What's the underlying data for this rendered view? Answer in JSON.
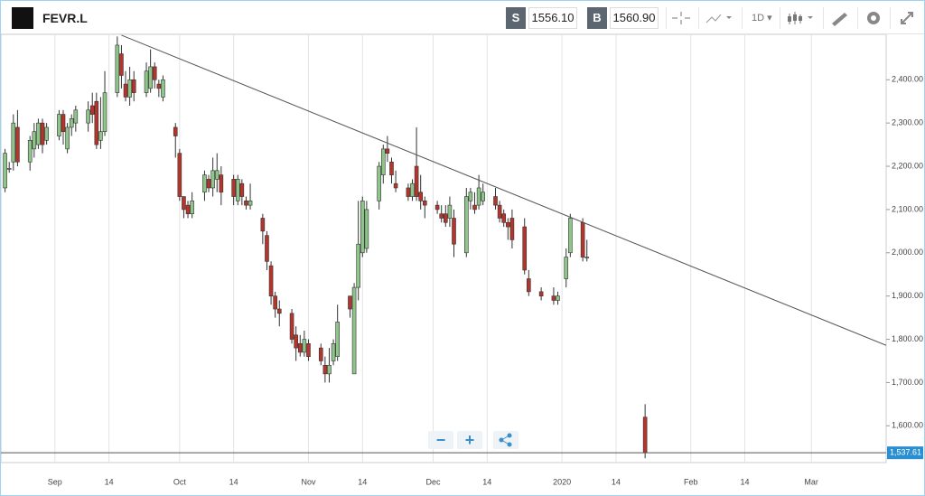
{
  "header": {
    "symbol": "FEVR.L",
    "sell_label": "S",
    "sell_price": "1556.10",
    "buy_label": "B",
    "buy_price": "1560.90",
    "interval": "1D"
  },
  "controls": {
    "zoom_out": "−",
    "zoom_in": "+"
  },
  "chart_data": {
    "type": "candlestick",
    "x": [
      "2019-08-20",
      "2019-08-21",
      "2019-08-22",
      "2019-08-23",
      "2019-08-26",
      "2019-08-27",
      "2019-08-28",
      "2019-08-29",
      "2019-08-30",
      "2019-09-02",
      "2019-09-03",
      "2019-09-04",
      "2019-09-05",
      "2019-09-06",
      "2019-09-09",
      "2019-09-10",
      "2019-09-11",
      "2019-09-12",
      "2019-09-13",
      "2019-09-16",
      "2019-09-17",
      "2019-09-18",
      "2019-09-19",
      "2019-09-20",
      "2019-09-23",
      "2019-09-24",
      "2019-09-25",
      "2019-09-26",
      "2019-09-27",
      "2019-09-30",
      "2019-10-01",
      "2019-10-02",
      "2019-10-03",
      "2019-10-04",
      "2019-10-07",
      "2019-10-08",
      "2019-10-09",
      "2019-10-10",
      "2019-10-11",
      "2019-10-14",
      "2019-10-15",
      "2019-10-16",
      "2019-10-17",
      "2019-10-18",
      "2019-10-21",
      "2019-10-22",
      "2019-10-23",
      "2019-10-24",
      "2019-10-25",
      "2019-10-28",
      "2019-10-29",
      "2019-10-30",
      "2019-10-31",
      "2019-11-01",
      "2019-11-04",
      "2019-11-05",
      "2019-11-06",
      "2019-11-07",
      "2019-11-08",
      "2019-11-11",
      "2019-11-12",
      "2019-11-13",
      "2019-11-14",
      "2019-11-15",
      "2019-11-18",
      "2019-11-19",
      "2019-11-20",
      "2019-11-21",
      "2019-11-22",
      "2019-11-25",
      "2019-11-26",
      "2019-11-27",
      "2019-11-28",
      "2019-11-29",
      "2019-12-02",
      "2019-12-03",
      "2019-12-04",
      "2019-12-05",
      "2019-12-06",
      "2019-12-09",
      "2019-12-10",
      "2019-12-11",
      "2019-12-12",
      "2019-12-13",
      "2019-12-16",
      "2019-12-17",
      "2019-12-18",
      "2019-12-19",
      "2019-12-20",
      "2019-12-23",
      "2019-12-24",
      "2019-12-27",
      "2019-12-30",
      "2019-12-31",
      "2020-01-02",
      "2020-01-03",
      "2020-01-06",
      "2020-01-07",
      "2020-01-21"
    ],
    "open": [
      2150,
      2195,
      2210,
      2290,
      2210,
      2240,
      2250,
      2300,
      2260,
      2270,
      2320,
      2240,
      2290,
      2300,
      2300,
      2340,
      2350,
      2260,
      2280,
      2370,
      2460,
      2390,
      2360,
      2400,
      2370,
      2380,
      2430,
      2390,
      2360,
      2290,
      2230,
      2130,
      2110,
      2090,
      2140,
      2170,
      2150,
      2170,
      2180,
      2170,
      2120,
      2160,
      2120,
      2110,
      2080,
      2040,
      1970,
      1900,
      1870,
      1860,
      1810,
      1790,
      1770,
      1790,
      1780,
      1740,
      1720,
      1750,
      1760,
      1900,
      1720,
      1920,
      2000,
      2010,
      2120,
      2180,
      2240,
      2210,
      2160,
      2150,
      2130,
      2200,
      2140,
      2120,
      2110,
      2090,
      2090,
      2080,
      2080,
      2000,
      2120,
      2110,
      2110,
      2120,
      2130,
      2110,
      2090,
      2070,
      2080,
      2060,
      1940,
      1910,
      1900,
      1890,
      1940,
      2000,
      2070,
      1990,
      1620
    ],
    "high": [
      2240,
      2210,
      2320,
      2330,
      2270,
      2300,
      2310,
      2310,
      2300,
      2330,
      2330,
      2300,
      2320,
      2340,
      2350,
      2370,
      2370,
      2360,
      2420,
      2500,
      2480,
      2420,
      2430,
      2420,
      2440,
      2470,
      2440,
      2400,
      2410,
      2300,
      2240,
      2130,
      2120,
      2140,
      2190,
      2180,
      2220,
      2230,
      2200,
      2180,
      2180,
      2170,
      2130,
      2160,
      2090,
      2050,
      1980,
      1910,
      1890,
      1870,
      1830,
      1810,
      1820,
      1800,
      1790,
      1760,
      1780,
      1800,
      1880,
      1900,
      1930,
      2120,
      2130,
      2120,
      2210,
      2250,
      2270,
      2220,
      2190,
      2160,
      2170,
      2290,
      2180,
      2130,
      2120,
      2110,
      2110,
      2130,
      2100,
      2150,
      2150,
      2140,
      2180,
      2160,
      2150,
      2120,
      2100,
      2080,
      2100,
      2080,
      1960,
      1920,
      1920,
      1910,
      2010,
      2090,
      2080,
      2030,
      1650
    ],
    "low": [
      2140,
      2185,
      2190,
      2200,
      2190,
      2220,
      2240,
      2230,
      2250,
      2260,
      2250,
      2230,
      2270,
      2280,
      2280,
      2300,
      2240,
      2240,
      2270,
      2360,
      2380,
      2350,
      2340,
      2350,
      2360,
      2370,
      2380,
      2360,
      2350,
      2220,
      2120,
      2080,
      2080,
      2080,
      2120,
      2140,
      2130,
      2140,
      2110,
      2110,
      2110,
      2110,
      2100,
      2100,
      2020,
      1960,
      1880,
      1850,
      1830,
      1790,
      1750,
      1760,
      1760,
      1750,
      1740,
      1700,
      1700,
      1740,
      1750,
      1850,
      1720,
      1890,
      1990,
      2000,
      2100,
      2160,
      2210,
      2160,
      2140,
      2120,
      2120,
      2120,
      2100,
      2080,
      2090,
      2070,
      2060,
      2060,
      1990,
      1990,
      2100,
      2090,
      2100,
      2110,
      2100,
      2070,
      2060,
      2030,
      2010,
      1950,
      1900,
      1890,
      1880,
      1880,
      1920,
      1990,
      1980,
      1980,
      1525
    ],
    "close": [
      2230,
      2195,
      2300,
      2210,
      2260,
      2280,
      2300,
      2250,
      2290,
      2320,
      2280,
      2290,
      2310,
      2330,
      2330,
      2320,
      2250,
      2280,
      2370,
      2480,
      2410,
      2360,
      2400,
      2370,
      2420,
      2430,
      2400,
      2380,
      2400,
      2270,
      2130,
      2100,
      2090,
      2120,
      2180,
      2150,
      2190,
      2190,
      2140,
      2130,
      2170,
      2130,
      2110,
      2120,
      2050,
      1980,
      1900,
      1870,
      1860,
      1800,
      1780,
      1770,
      1800,
      1760,
      1750,
      1720,
      1740,
      1790,
      1840,
      1870,
      1920,
      2020,
      2120,
      2100,
      2200,
      2240,
      2230,
      2180,
      2150,
      2130,
      2160,
      2130,
      2120,
      2110,
      2100,
      2080,
      2070,
      2110,
      2020,
      2130,
      2140,
      2100,
      2150,
      2140,
      2110,
      2080,
      2070,
      2060,
      2030,
      1960,
      1910,
      1900,
      1890,
      1900,
      1990,
      2080,
      1990,
      1990,
      1538
    ],
    "up_color": "#8fc48b",
    "down_color": "#b5342b",
    "xlim": [
      "2019-08-19",
      "2020-03-19"
    ],
    "xticks": [
      {
        "value": "2019-09-01",
        "label": "Sep"
      },
      {
        "value": "2019-09-14",
        "label": "14"
      },
      {
        "value": "2019-10-01",
        "label": "Oct"
      },
      {
        "value": "2019-10-14",
        "label": "14"
      },
      {
        "value": "2019-11-01",
        "label": "Nov"
      },
      {
        "value": "2019-11-14",
        "label": "14"
      },
      {
        "value": "2019-12-01",
        "label": "Dec"
      },
      {
        "value": "2019-12-14",
        "label": "14"
      },
      {
        "value": "2020-01-01",
        "label": "2020"
      },
      {
        "value": "2020-01-14",
        "label": "14"
      },
      {
        "value": "2020-02-01",
        "label": "Feb"
      },
      {
        "value": "2020-02-14",
        "label": "14"
      },
      {
        "value": "2020-03-01",
        "label": "Mar"
      }
    ],
    "ylim": [
      1515,
      2505
    ],
    "yticks": [
      {
        "value": 1600,
        "label": "1,600.00"
      },
      {
        "value": 1700,
        "label": "1,700.00"
      },
      {
        "value": 1800,
        "label": "1,800.00"
      },
      {
        "value": 1900,
        "label": "1,900.00"
      },
      {
        "value": 2000,
        "label": "2,000.00"
      },
      {
        "value": 2100,
        "label": "2,100.00"
      },
      {
        "value": 2200,
        "label": "2,200.00"
      },
      {
        "value": 2300,
        "label": "2,300.00"
      },
      {
        "value": 2400,
        "label": "2,400.00"
      }
    ],
    "grid": "x",
    "last_price": {
      "value": 1537.61,
      "label": "1,537.61"
    },
    "trendline": {
      "x": [
        "2019-09-17",
        "2020-03-19"
      ],
      "y": [
        2503,
        1786
      ]
    }
  }
}
